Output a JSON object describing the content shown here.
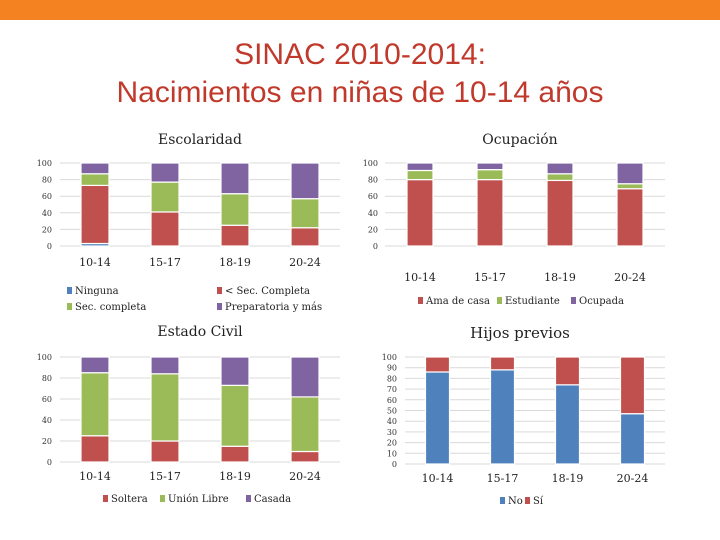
{
  "page": {
    "bar_color": "#f58220",
    "title_line1": "SINAC 2010-2014:",
    "title_line2": "Nacimientos en niñas de 10-14 años"
  },
  "colors": {
    "blue": "#4f81bd",
    "red": "#c0504d",
    "green": "#9bbb59",
    "purple": "#8064a2"
  },
  "chart_data": [
    {
      "type": "bar",
      "stacked": true,
      "title": "Escolaridad",
      "categories": [
        "10-14",
        "15-17",
        "18-19",
        "20-24"
      ],
      "yticks": [
        "0",
        "20",
        "40",
        "60",
        "80",
        "100"
      ],
      "ylim": [
        0,
        100
      ],
      "series": [
        {
          "name": "Ninguna",
          "color": "blue",
          "values": [
            3,
            0,
            0,
            0
          ]
        },
        {
          "name": "< Sec. Completa",
          "color": "red",
          "values": [
            70,
            41,
            25,
            22
          ]
        },
        {
          "name": "Sec. completa",
          "color": "green",
          "values": [
            14,
            36,
            38,
            35
          ]
        },
        {
          "name": "Preparatoria y más",
          "color": "purple",
          "values": [
            13,
            23,
            37,
            43
          ]
        }
      ],
      "legend_rows": [
        [
          "Ninguna",
          "< Sec. Completa"
        ],
        [
          "Sec. completa",
          "Preparatoria y más"
        ]
      ]
    },
    {
      "type": "bar",
      "stacked": true,
      "title": "Ocupación",
      "categories": [
        "10-14",
        "15-17",
        "18-19",
        "20-24"
      ],
      "yticks": [
        "0",
        "20",
        "40",
        "60",
        "80",
        "100"
      ],
      "ylim": [
        0,
        100
      ],
      "series": [
        {
          "name": "Ama de casa",
          "color": "red",
          "values": [
            80,
            80,
            79,
            69
          ]
        },
        {
          "name": "Estudiante",
          "color": "green",
          "values": [
            11,
            12,
            8,
            6
          ]
        },
        {
          "name": "Ocupada",
          "color": "purple",
          "values": [
            9,
            8,
            13,
            25
          ]
        }
      ]
    },
    {
      "type": "bar",
      "stacked": true,
      "title": "Estado Civil",
      "categories": [
        "10-14",
        "15-17",
        "18-19",
        "20-24"
      ],
      "yticks": [
        "0",
        "20",
        "40",
        "60",
        "80",
        "100"
      ],
      "ylim": [
        0,
        100
      ],
      "series": [
        {
          "name": "Soltera",
          "color": "red",
          "values": [
            25,
            20,
            15,
            10
          ]
        },
        {
          "name": "Unión Libre",
          "color": "green",
          "values": [
            60,
            64,
            58,
            52
          ]
        },
        {
          "name": "Casada",
          "color": "purple",
          "values": [
            15,
            16,
            27,
            38
          ]
        }
      ]
    },
    {
      "type": "bar",
      "stacked": true,
      "title": "Hijos previos",
      "categories": [
        "10-14",
        "15-17",
        "18-19",
        "20-24"
      ],
      "yticks": [
        "0",
        "10",
        "20",
        "30",
        "40",
        "50",
        "60",
        "70",
        "80",
        "90",
        "100"
      ],
      "ylim": [
        0,
        100
      ],
      "series": [
        {
          "name": "No",
          "color": "blue",
          "values": [
            86,
            88,
            74,
            47
          ]
        },
        {
          "name": "Sí",
          "color": "red",
          "values": [
            14,
            12,
            26,
            53
          ]
        }
      ]
    }
  ]
}
